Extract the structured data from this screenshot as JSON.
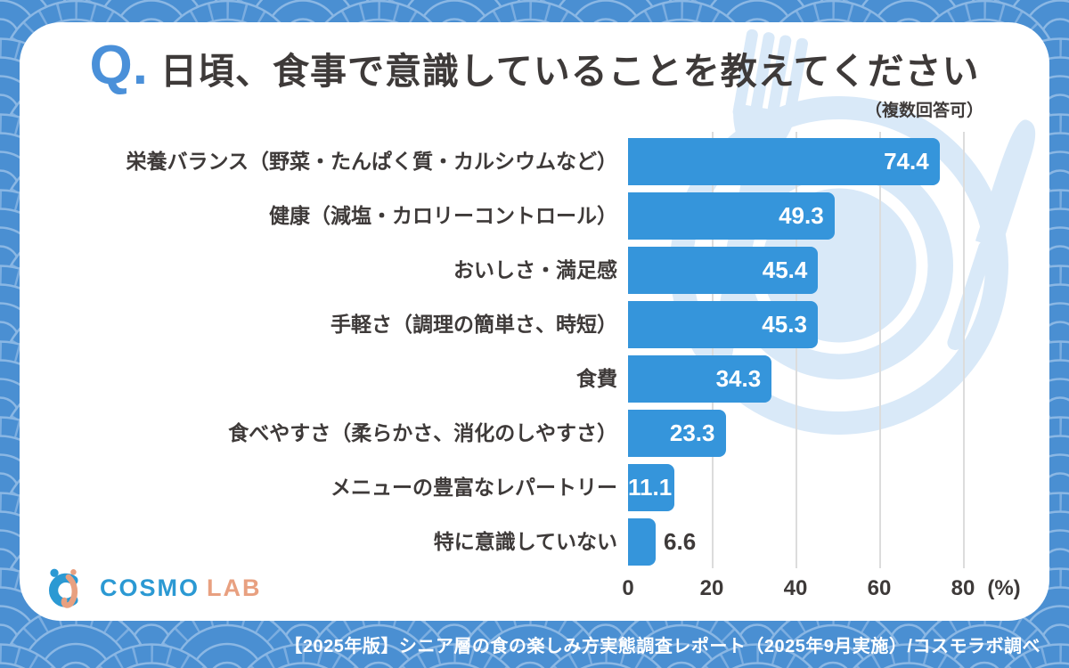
{
  "header": {
    "q_prefix": "Q.",
    "title": "日頃、食事で意識していることを教えてください",
    "note": "（複数回答可）"
  },
  "chart_data": {
    "type": "bar",
    "orientation": "horizontal",
    "title": "日頃、食事で意識していることを教えてください（複数回答可）",
    "categories": [
      "栄養バランス（野菜・たんぱく質・カルシウムなど）",
      "健康（減塩・カロリーコントロール）",
      "おいしさ・満足感",
      "手軽さ（調理の簡単さ、時短）",
      "食費",
      "食べやすさ（柔らかさ、消化のしやすさ）",
      "メニューの豊富なレパートリー",
      "特に意識していない"
    ],
    "values": [
      74.4,
      49.3,
      45.4,
      45.3,
      34.3,
      23.3,
      11.1,
      6.6
    ],
    "unit": "%",
    "xticks": [
      0,
      20,
      40,
      60,
      80
    ],
    "xaxis_unit_label": "(%)",
    "xlim": [
      0,
      85
    ],
    "grid": true,
    "legend": null,
    "bar_color": "#3595db",
    "value_label_inside_color": "#ffffff",
    "value_label_outside_color": "#3e3a39"
  },
  "logo": {
    "icon": "cosmo-lab-mark",
    "text_primary": "COSMO",
    "text_secondary": "LAB"
  },
  "footer": {
    "text": "【2025年版】シニア層の食の楽しみ方実態調査レポート（2025年9月実施）/コスモラボ調べ"
  },
  "colors": {
    "frame_blue": "#4a8fd2",
    "pattern_line": "#8ab7e4",
    "card_white": "#ffffff",
    "bar_blue": "#3595db",
    "text_dark": "#3e3a39",
    "q_blue": "#4a90d9",
    "illustration_blue": "#d9e9f8",
    "gridline_gray": "#dcdcdc",
    "logo_blue": "#2b99d3",
    "logo_orange": "#e8a080"
  }
}
